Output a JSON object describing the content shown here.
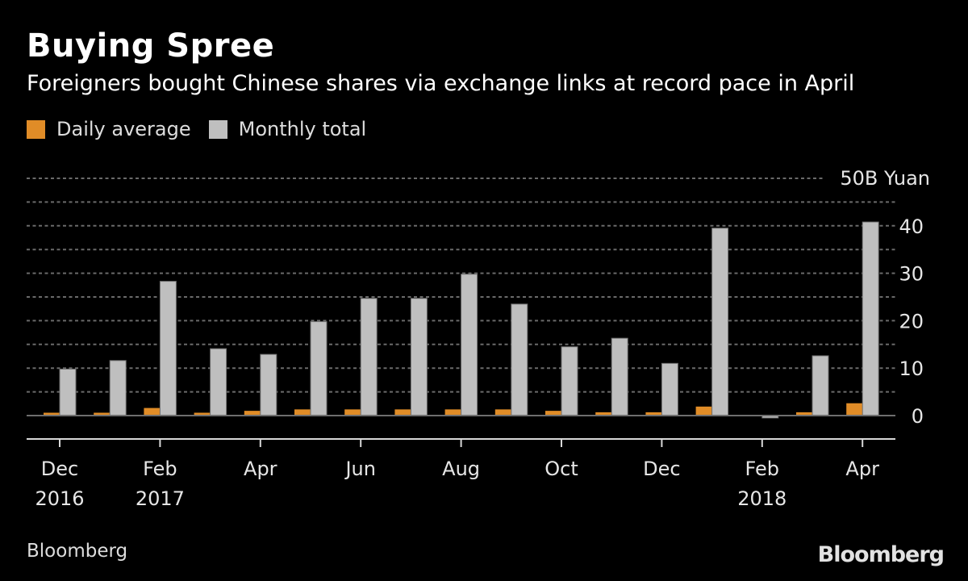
{
  "header": {
    "title": "Buying Spree",
    "subtitle": "Foreigners bought Chinese shares via exchange links at record pace in April"
  },
  "legend": [
    {
      "label": "Daily average",
      "color": "#E08C27"
    },
    {
      "label": "Monthly total",
      "color": "#BFBFBF"
    }
  ],
  "footer": {
    "source": "Bloomberg",
    "logo": "Bloomberg"
  },
  "chart_data": {
    "type": "bar",
    "title": "Buying Spree",
    "subtitle": "Foreigners bought Chinese shares via exchange links at record pace in April",
    "xlabel": "",
    "ylabel": "B Yuan",
    "unit_label": "50B Yuan",
    "ylim": [
      -5,
      50
    ],
    "yticks": [
      0,
      10,
      20,
      30,
      40,
      50
    ],
    "grid": true,
    "gridline_step": 5,
    "legend_position": "top-left",
    "categories": [
      "Dec 2016",
      "Jan 2017",
      "Feb 2017",
      "Mar 2017",
      "Apr 2017",
      "May 2017",
      "Jun 2017",
      "Jul 2017",
      "Aug 2017",
      "Sep 2017",
      "Oct 2017",
      "Nov 2017",
      "Dec 2017",
      "Jan 2018",
      "Feb 2018",
      "Mar 2018",
      "Apr 2018"
    ],
    "x_tick_labels": [
      {
        "index": 0,
        "month": "Dec",
        "year": "2016"
      },
      {
        "index": 2,
        "month": "Feb",
        "year": "2017"
      },
      {
        "index": 4,
        "month": "Apr",
        "year": ""
      },
      {
        "index": 6,
        "month": "Jun",
        "year": ""
      },
      {
        "index": 8,
        "month": "Aug",
        "year": ""
      },
      {
        "index": 10,
        "month": "Oct",
        "year": ""
      },
      {
        "index": 12,
        "month": "Dec",
        "year": ""
      },
      {
        "index": 14,
        "month": "Feb",
        "year": "2018"
      },
      {
        "index": 16,
        "month": "Apr",
        "year": ""
      }
    ],
    "series": [
      {
        "name": "Daily average",
        "color": "#E08C27",
        "values": [
          0.6,
          0.6,
          1.6,
          0.6,
          1.0,
          1.3,
          1.3,
          1.3,
          1.3,
          1.3,
          1.0,
          0.7,
          0.7,
          1.9,
          -0.1,
          0.7,
          2.6
        ]
      },
      {
        "name": "Monthly total",
        "color": "#BFBFBF",
        "values": [
          9.8,
          11.6,
          28.3,
          14.1,
          12.9,
          19.8,
          24.7,
          24.7,
          29.8,
          23.5,
          14.5,
          16.3,
          11.0,
          39.5,
          -0.5,
          12.6,
          40.8
        ]
      }
    ]
  }
}
